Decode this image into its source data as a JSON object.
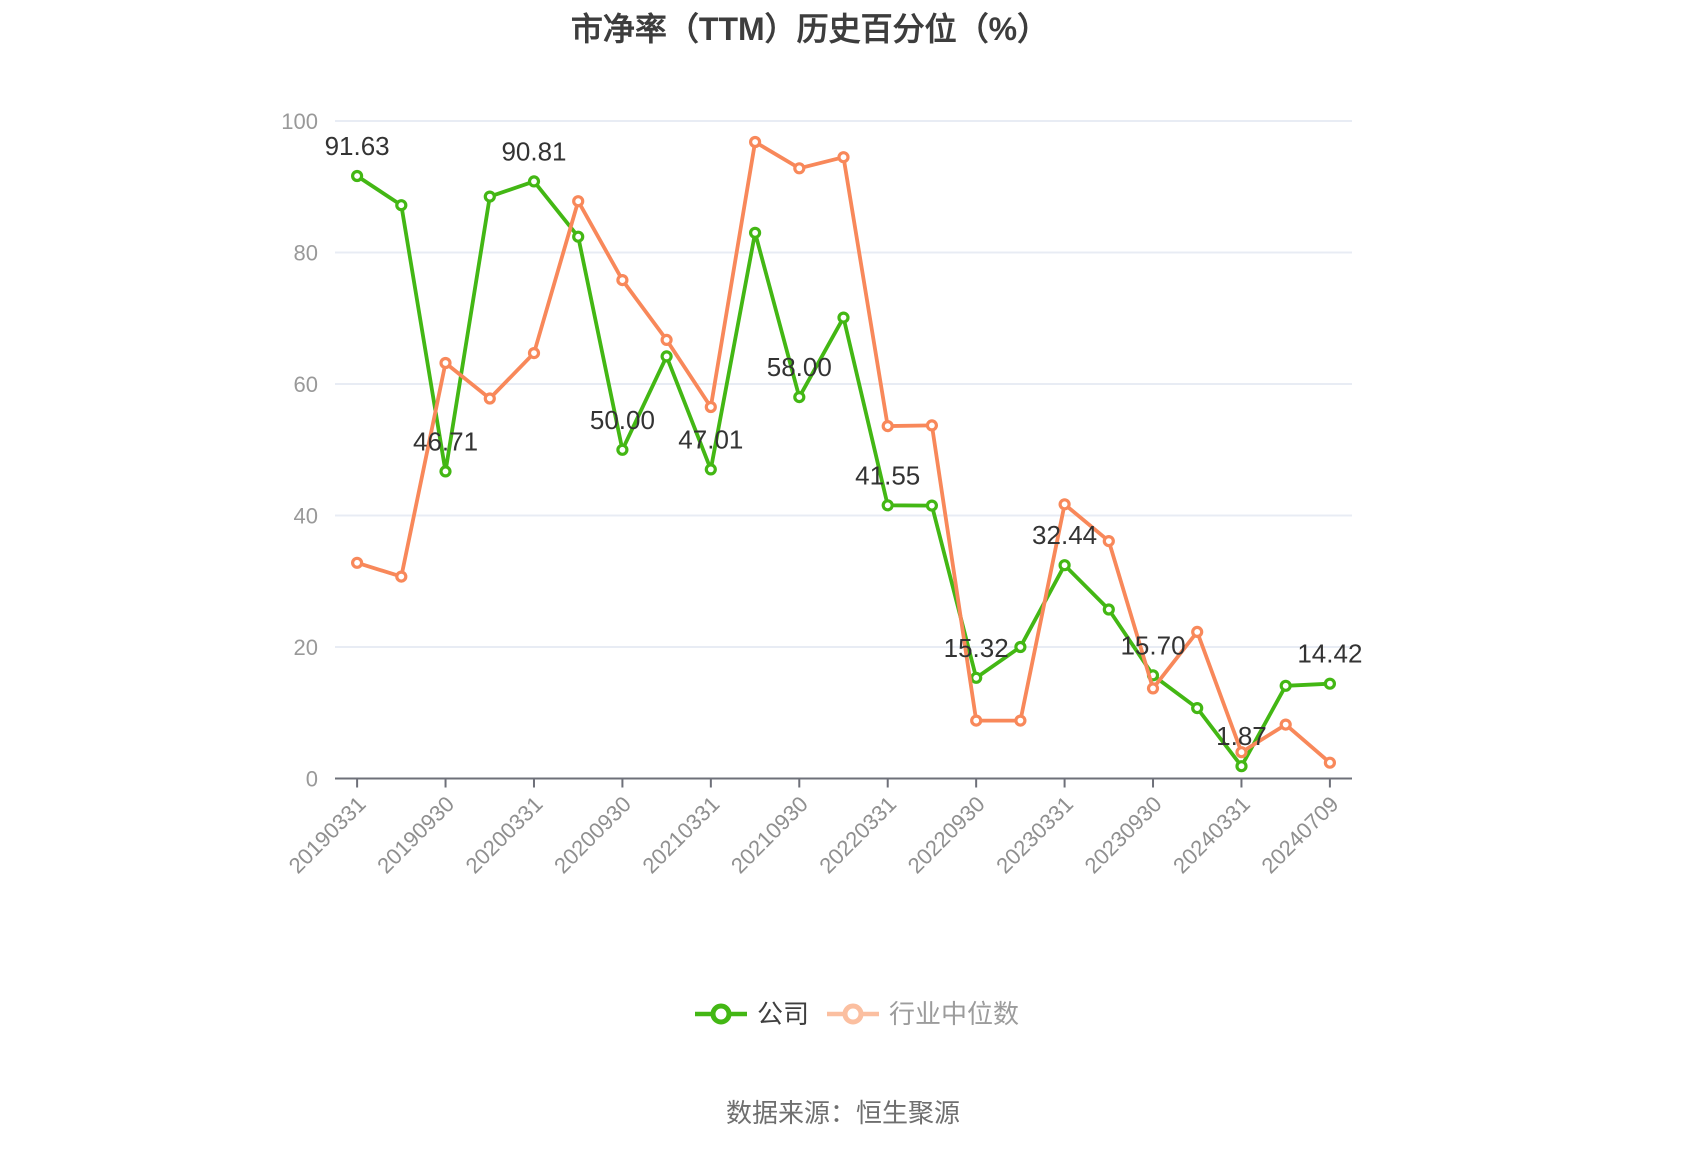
{
  "title": "市净率（TTM）历史百分位（%）",
  "source_note": "数据来源：恒生聚源",
  "colors": {
    "company_line": "#43b714",
    "industry_line": "#f8885a",
    "industry_legend_marker": "#fbbfa0",
    "grid_line": "#e8ecf4",
    "axis_line": "#6e7079",
    "y_tick_label": "#999999",
    "x_tick_label": "#8f8f8f",
    "data_label": "#333333",
    "title_text": "#3d3d3d",
    "source_text": "#6f6f6f",
    "background": "#ffffff"
  },
  "legend": {
    "items": [
      {
        "label": "公司",
        "marker_color": "#43b714",
        "text_color": "#3f3f3f"
      },
      {
        "label": "行业中位数",
        "marker_color": "#fbbfa0",
        "text_color": "#9c9c9c"
      }
    ]
  },
  "chart_data": {
    "type": "line",
    "title": "市净率（TTM）历史百分位（%）",
    "xlabel": "",
    "ylabel": "",
    "ylim": [
      0,
      100
    ],
    "yticks": [
      0,
      20,
      40,
      60,
      80,
      100
    ],
    "grid": true,
    "legend_position": "bottom",
    "categories": [
      "20190331",
      "20190930",
      "20200331",
      "20200930",
      "20210331",
      "20210930",
      "20220331",
      "20220930",
      "20230331",
      "20230930",
      "20240331",
      "20240709"
    ],
    "x_slot_count": 23,
    "labeled_slot_indices": [
      0,
      2,
      4,
      6,
      8,
      10,
      12,
      14,
      16,
      18,
      20,
      22
    ],
    "series": [
      {
        "name": "公司",
        "color": "#43b714",
        "values": [
          91.63,
          87.2,
          46.71,
          88.5,
          90.81,
          82.4,
          50.0,
          64.2,
          47.01,
          83.0,
          58.0,
          70.1,
          41.55,
          41.5,
          15.32,
          20.0,
          32.44,
          25.7,
          15.7,
          10.7,
          1.87,
          14.1,
          14.42
        ],
        "point_labels": [
          "91.63",
          "46.71",
          "90.81",
          "50.00",
          "47.01",
          "58.00",
          "41.55",
          "15.32",
          "32.44",
          "15.70",
          "1.87",
          "14.42"
        ]
      },
      {
        "name": "行业中位数",
        "color": "#f8885a",
        "values": [
          32.8,
          30.7,
          63.2,
          57.8,
          64.7,
          87.8,
          75.8,
          66.7,
          56.5,
          96.8,
          92.8,
          94.5,
          53.6,
          53.7,
          8.8,
          8.8,
          41.7,
          36.1,
          13.7,
          22.3,
          4.0,
          8.2,
          2.4
        ],
        "point_labels": []
      }
    ]
  }
}
